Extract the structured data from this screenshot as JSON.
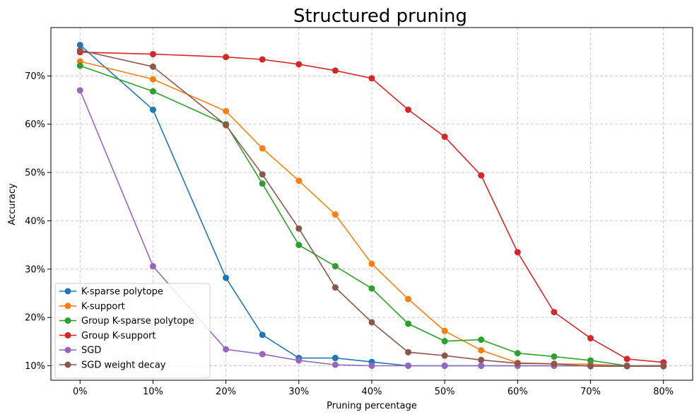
{
  "chart_data": {
    "type": "line",
    "title": "Structured pruning",
    "xlabel": "Pruning percentage",
    "ylabel": "Accuracy",
    "x": [
      0,
      10,
      20,
      25,
      30,
      35,
      40,
      45,
      50,
      55,
      60,
      65,
      70,
      75,
      80
    ],
    "x_ticks": [
      0,
      10,
      20,
      30,
      40,
      50,
      60,
      70,
      80
    ],
    "x_tick_labels": [
      "0%",
      "10%",
      "20%",
      "30%",
      "40%",
      "50%",
      "60%",
      "70%",
      "80%"
    ],
    "y_ticks": [
      10,
      20,
      30,
      40,
      50,
      60,
      70
    ],
    "y_tick_labels": [
      "10%",
      "20%",
      "30%",
      "40%",
      "50%",
      "60%",
      "70%"
    ],
    "xlim": [
      -4,
      84
    ],
    "ylim": [
      7,
      80
    ],
    "grid": true,
    "legend_position": "lower-left",
    "series": [
      {
        "name": "K-sparse polytope",
        "color": "#1f77b4",
        "values": [
          76.4,
          63.0,
          28.2,
          16.4,
          11.6,
          11.6,
          10.8,
          10.0,
          10.0,
          10.0,
          10.0,
          10.0,
          10.0,
          10.0,
          10.0
        ]
      },
      {
        "name": "K-support",
        "color": "#ff7f0e",
        "values": [
          73.0,
          69.3,
          62.7,
          55.0,
          48.3,
          41.3,
          31.1,
          23.8,
          17.2,
          13.2,
          10.6,
          10.4,
          10.3,
          10.0,
          10.0
        ]
      },
      {
        "name": "Group K-sparse polytope",
        "color": "#2ca02c",
        "values": [
          72.1,
          66.8,
          60.0,
          47.7,
          35.0,
          30.6,
          26.0,
          18.7,
          15.1,
          15.4,
          12.6,
          11.9,
          11.1,
          10.0,
          10.0
        ]
      },
      {
        "name": "Group K-support",
        "color": "#d62728",
        "values": [
          74.9,
          74.5,
          73.9,
          73.4,
          72.4,
          71.1,
          69.5,
          63.0,
          57.4,
          49.4,
          33.5,
          21.1,
          15.7,
          11.4,
          10.7
        ]
      },
      {
        "name": "SGD",
        "color": "#9467bd",
        "values": [
          67.0,
          30.6,
          13.4,
          12.4,
          11.1,
          10.2,
          10.0,
          10.0,
          10.0,
          10.0,
          10.0,
          10.0,
          10.0,
          10.0,
          10.0
        ]
      },
      {
        "name": "SGD weight decay",
        "color": "#8c564b",
        "values": [
          75.3,
          71.9,
          59.8,
          49.6,
          38.4,
          26.2,
          19.0,
          12.8,
          12.1,
          11.2,
          10.5,
          10.4,
          9.9,
          9.9,
          9.9
        ]
      }
    ]
  }
}
